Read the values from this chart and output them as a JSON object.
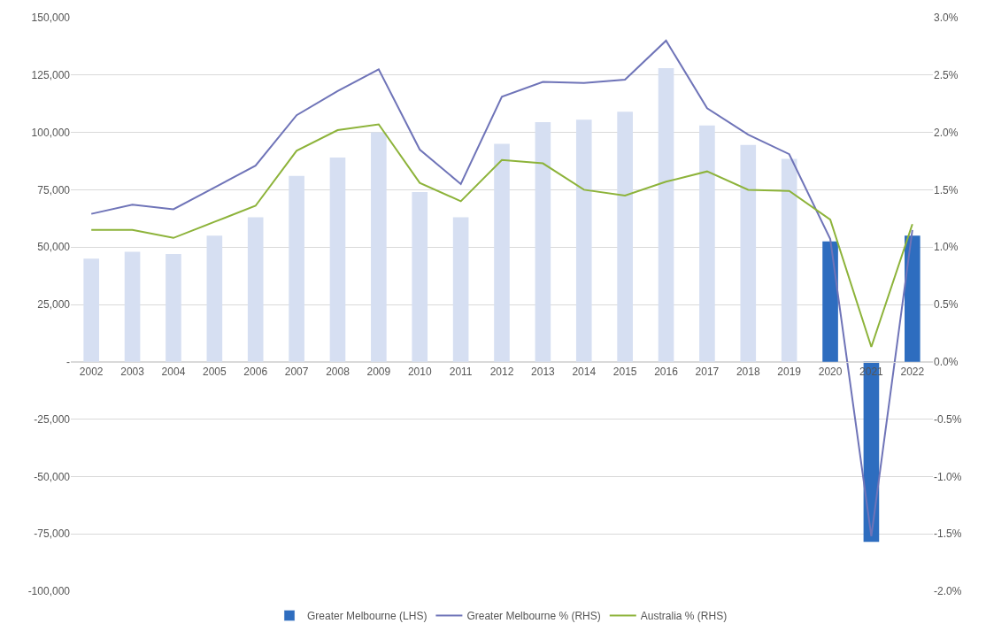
{
  "chart_data": {
    "type": "bar",
    "categories": [
      "2002",
      "2003",
      "2004",
      "2005",
      "2006",
      "2007",
      "2008",
      "2009",
      "2010",
      "2011",
      "2012",
      "2013",
      "2014",
      "2015",
      "2016",
      "2017",
      "2018",
      "2019",
      "2020",
      "2021",
      "2022"
    ],
    "series": [
      {
        "name": "Greater Melbourne (LHS)",
        "color": "#2e6dbf",
        "colors": [
          "#d6dff2",
          "#d6dff2",
          "#d6dff2",
          "#d6dff2",
          "#d6dff2",
          "#d6dff2",
          "#d6dff2",
          "#d6dff2",
          "#d6dff2",
          "#d6dff2",
          "#d6dff2",
          "#d6dff2",
          "#d6dff2",
          "#d6dff2",
          "#d6dff2",
          "#d6dff2",
          "#d6dff2",
          "#d6dff2",
          "#2e6dbf",
          "#2e6dbf",
          "#2e6dbf"
        ],
        "values": [
          45000,
          48000,
          47000,
          55000,
          63000,
          81000,
          89000,
          100000,
          74000,
          63000,
          95000,
          104500,
          105500,
          109000,
          128000,
          103000,
          94500,
          88500,
          52500,
          -78500,
          55000
        ]
      },
      {
        "name": "Greater Melbourne % (RHS)",
        "type": "line",
        "axis": "y2",
        "color": "#6f74b8",
        "values": [
          1.29,
          1.37,
          1.33,
          1.52,
          1.71,
          2.15,
          2.36,
          2.55,
          1.85,
          1.55,
          2.31,
          2.44,
          2.43,
          2.46,
          2.8,
          2.21,
          1.98,
          1.81,
          1.07,
          -1.52,
          1.15
        ]
      },
      {
        "name": "Australia % (RHS)",
        "type": "line",
        "axis": "y2",
        "color": "#8db33a",
        "values": [
          1.15,
          1.15,
          1.08,
          1.22,
          1.36,
          1.84,
          2.02,
          2.07,
          1.56,
          1.4,
          1.76,
          1.73,
          1.5,
          1.45,
          1.57,
          1.66,
          1.5,
          1.49,
          1.24,
          0.13,
          1.2
        ]
      }
    ],
    "ylim": [
      -100000,
      150000
    ],
    "yticks": [
      {
        "value": -100000,
        "label": "-100,000"
      },
      {
        "value": -75000,
        "label": "-75,000"
      },
      {
        "value": -50000,
        "label": "-50,000"
      },
      {
        "value": -25000,
        "label": "-25,000"
      },
      {
        "value": 0,
        "label": "-"
      },
      {
        "value": 25000,
        "label": "25,000"
      },
      {
        "value": 50000,
        "label": "50,000"
      },
      {
        "value": 75000,
        "label": "75,000"
      },
      {
        "value": 100000,
        "label": "100,000"
      },
      {
        "value": 125000,
        "label": "125,000"
      },
      {
        "value": 150000,
        "label": "150,000"
      }
    ],
    "y2lim": [
      -2.0,
      3.0
    ],
    "y2ticks": [
      {
        "value": -2.0,
        "label": "-2.0%"
      },
      {
        "value": -1.5,
        "label": "-1.5%"
      },
      {
        "value": -1.0,
        "label": "-1.0%"
      },
      {
        "value": -0.5,
        "label": "-0.5%"
      },
      {
        "value": 0,
        "label": "0.0%"
      },
      {
        "value": 0.5,
        "label": "0.5%"
      },
      {
        "value": 1.0,
        "label": "1.0%"
      },
      {
        "value": 1.5,
        "label": "1.5%"
      },
      {
        "value": 2.0,
        "label": "2.0%"
      },
      {
        "value": 2.5,
        "label": "2.5%"
      },
      {
        "value": 3.0,
        "label": "3.0%"
      }
    ],
    "grid": "y",
    "legend": "bottom",
    "marker": "none",
    "line_style": "solid"
  }
}
